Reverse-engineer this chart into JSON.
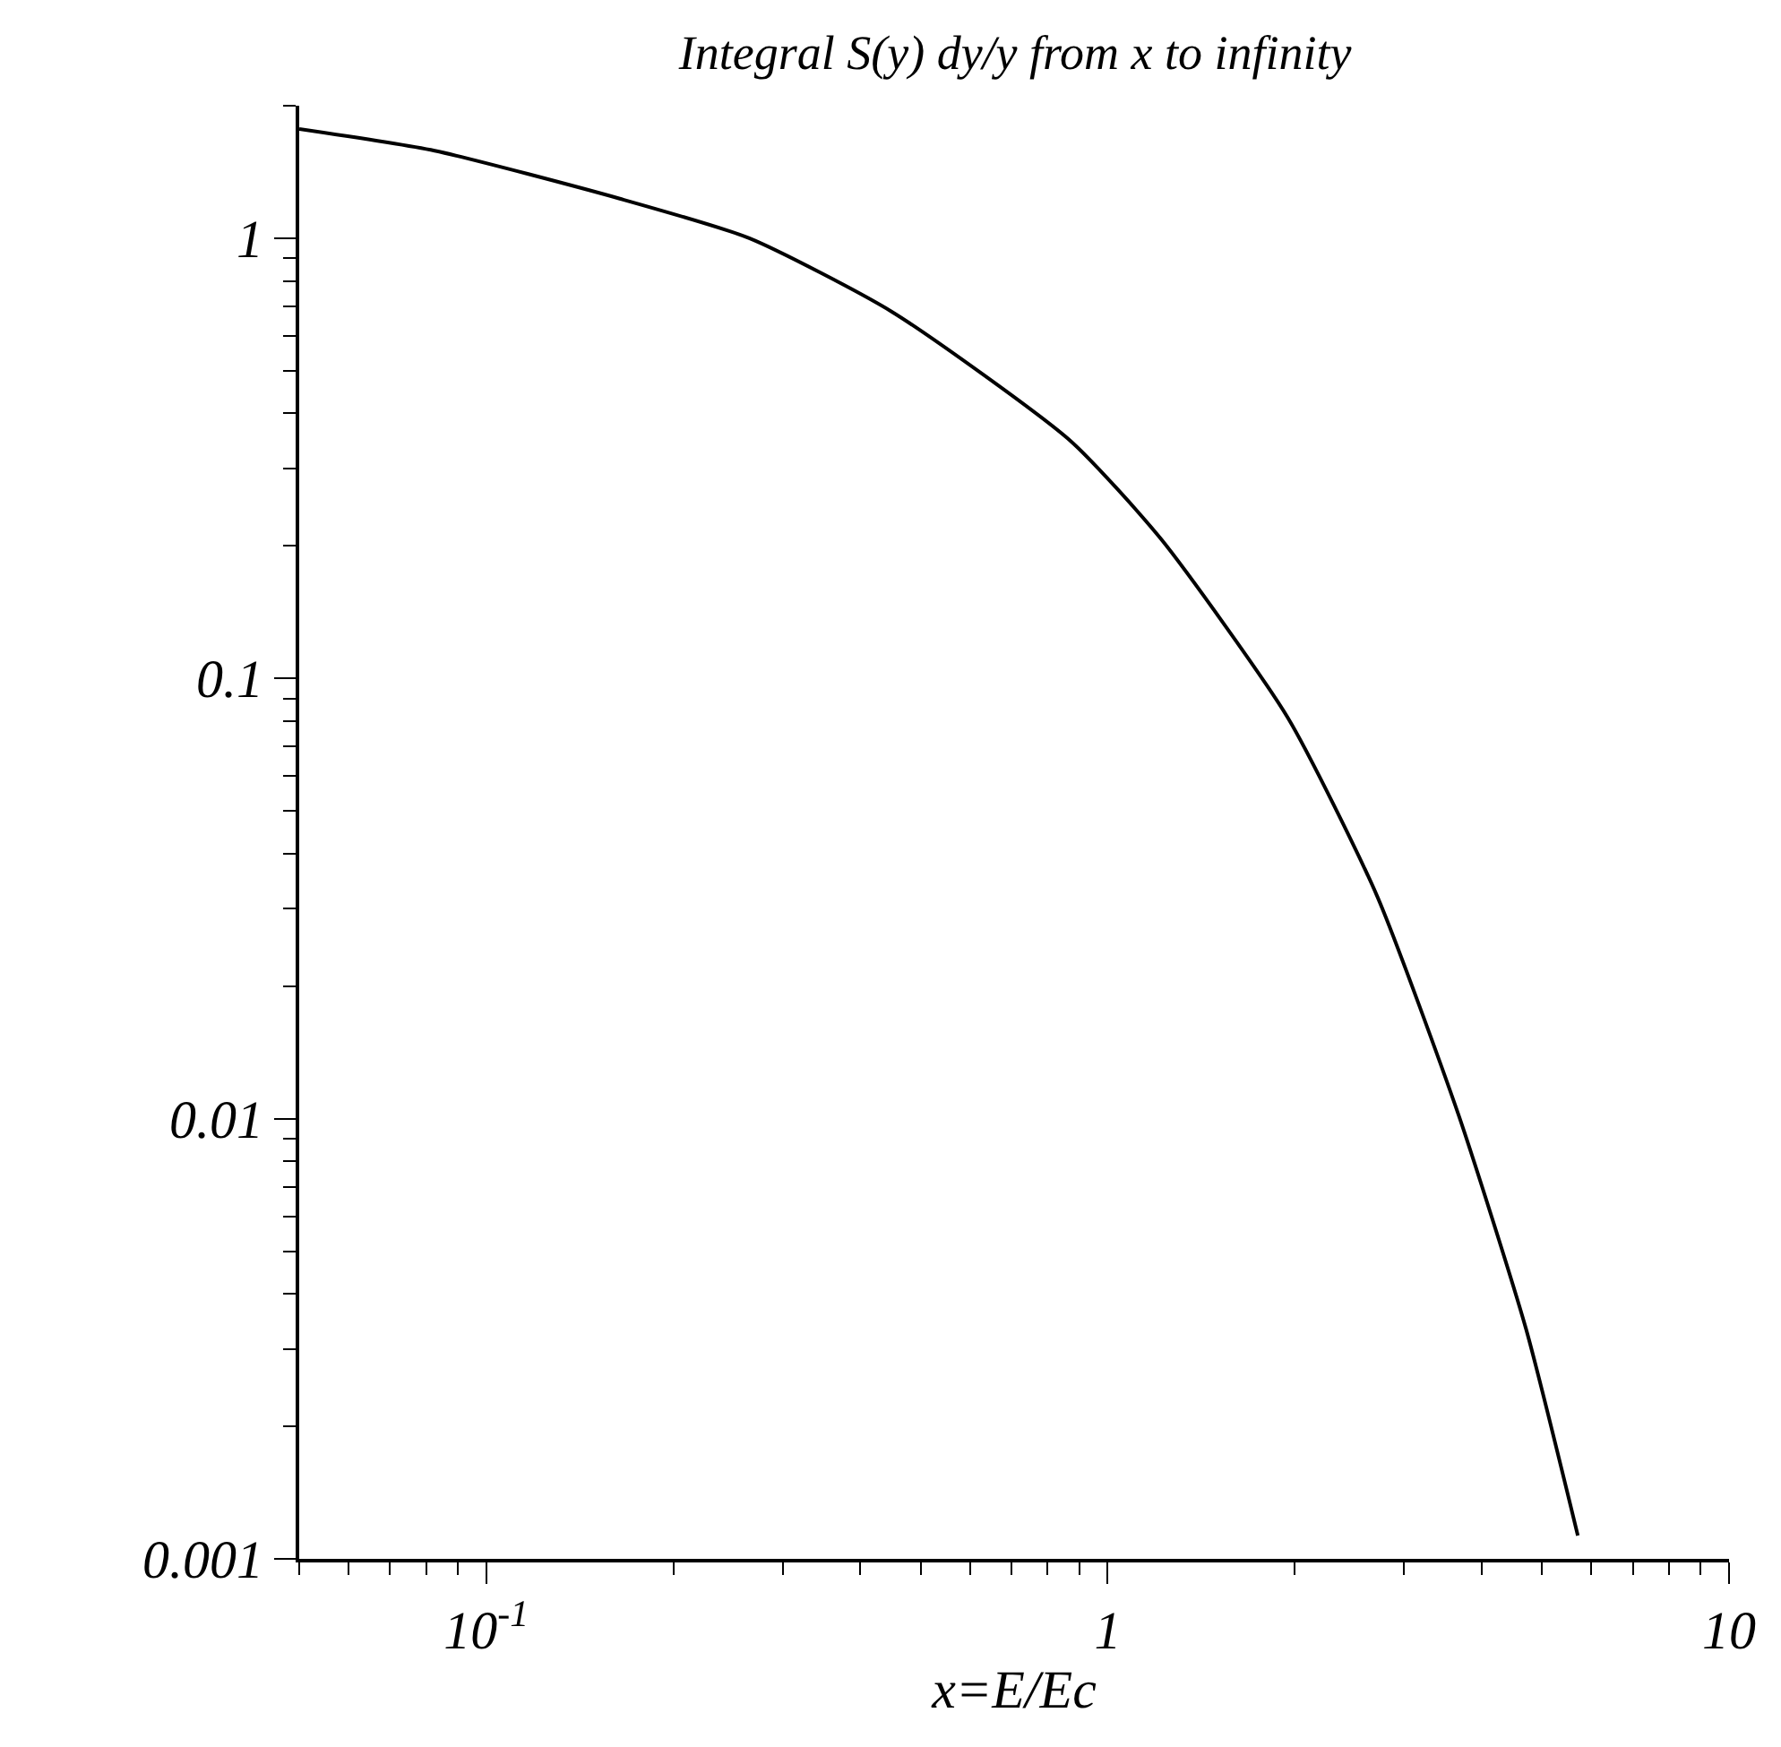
{
  "chart_data": {
    "type": "line",
    "title": "Integral S(y) dy/y from x to infinity",
    "xlabel": "x=E/Ec",
    "log": "xy",
    "x": [
      0.05,
      0.0826,
      0.164,
      0.265,
      0.45,
      0.87,
      1.22,
      1.95,
      2.71,
      3.67,
      4.71,
      5.71
    ],
    "series": [
      {
        "color": "#000000",
        "values": [
          1.77,
          1.58,
          1.23,
          1.0,
          0.68,
          0.347,
          0.207,
          0.0814,
          0.0322,
          0.0102,
          0.00334,
          0.00113
        ]
      }
    ],
    "xlim": [
      0.05,
      10
    ],
    "ylim": [
      0.001,
      2
    ],
    "xticks": [
      {
        "value": 0.1,
        "label": "10$^{-1}$"
      },
      1,
      10
    ],
    "yticks": [
      0.001,
      0.01,
      0.1,
      1
    ],
    "marker": "none",
    "line_style": "solid"
  }
}
